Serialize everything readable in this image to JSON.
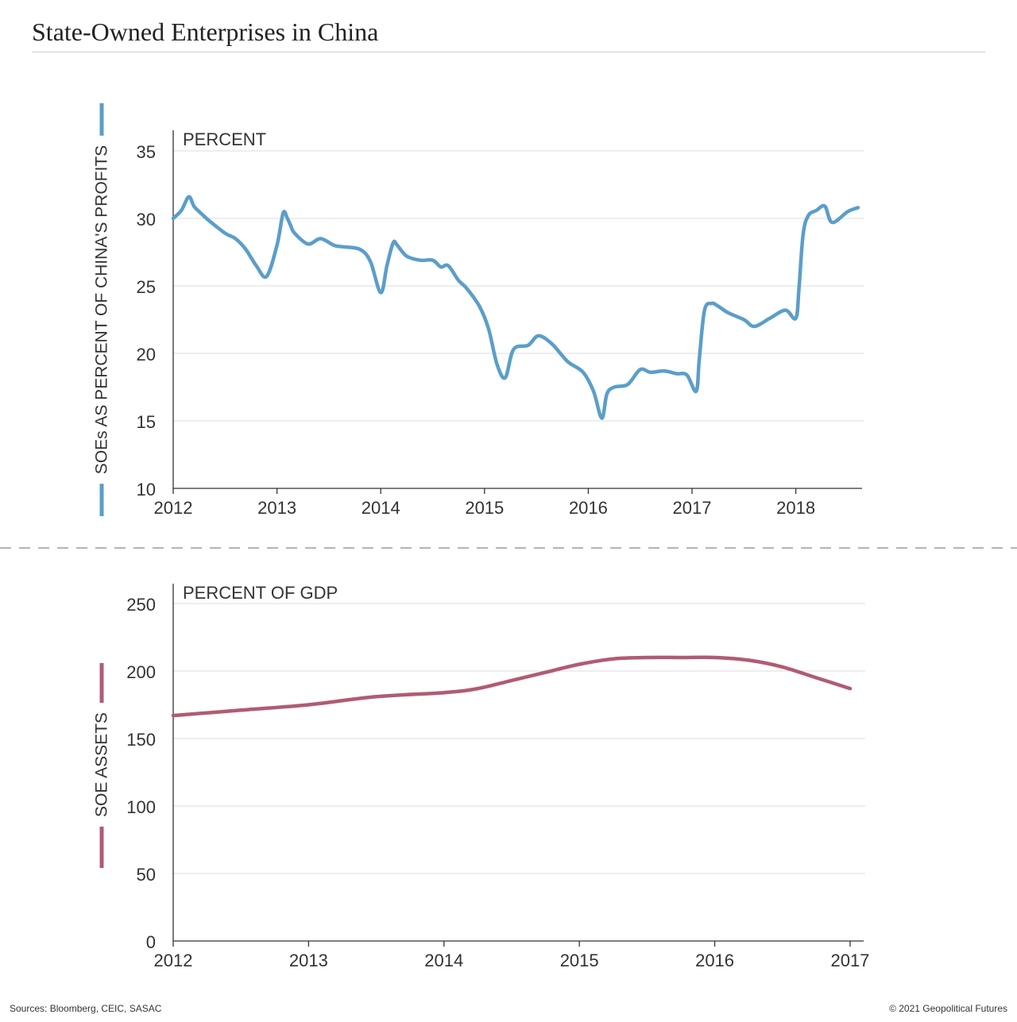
{
  "title": "State-Owned Enterprises in China",
  "footer": {
    "sources": "Sources: Bloomberg, CEIC, SASAC",
    "copyright": "© 2021 Geopolitical Futures"
  },
  "colors": {
    "profits": "#5b9ec9",
    "assets": "#b05c72"
  },
  "chart_data": [
    {
      "type": "line",
      "unit_label": "PERCENT",
      "ylabel": "SOEs AS PERCENT OF CHINA'S PROFITS",
      "ylim": [
        10,
        35
      ],
      "y_ticks": [
        10,
        15,
        20,
        25,
        30,
        35
      ],
      "xlim": [
        2012,
        2018.6
      ],
      "x_ticks": [
        "2012",
        "2013",
        "2014",
        "2015",
        "2016",
        "2017",
        "2018"
      ],
      "grid": true,
      "series": [
        {
          "color": "#5b9ec9",
          "x": [
            2012.0,
            2012.08,
            2012.15,
            2012.2,
            2012.25,
            2012.35,
            2012.5,
            2012.6,
            2012.7,
            2012.8,
            2012.9,
            2013.0,
            2013.06,
            2013.1,
            2013.13,
            2013.17,
            2013.3,
            2013.42,
            2013.55,
            2013.63,
            2013.8,
            2013.9,
            2014.0,
            2014.06,
            2014.12,
            2014.16,
            2014.25,
            2014.38,
            2014.5,
            2014.58,
            2014.65,
            2014.75,
            2014.83,
            2014.95,
            2015.04,
            2015.12,
            2015.2,
            2015.28,
            2015.42,
            2015.52,
            2015.65,
            2015.8,
            2015.95,
            2016.05,
            2016.13,
            2016.18,
            2016.25,
            2016.38,
            2016.5,
            2016.6,
            2016.73,
            2016.85,
            2016.95,
            2017.04,
            2017.07,
            2017.12,
            2017.19,
            2017.25,
            2017.35,
            2017.5,
            2017.6,
            2017.75,
            2017.9,
            2018.0,
            2018.03,
            2018.07,
            2018.12,
            2018.2,
            2018.28,
            2018.35,
            2018.5,
            2018.6
          ],
          "y": [
            30.0,
            30.6,
            31.6,
            30.9,
            30.5,
            29.8,
            28.9,
            28.5,
            27.7,
            26.5,
            25.7,
            28.0,
            30.4,
            30.0,
            29.5,
            28.9,
            28.1,
            28.5,
            28.0,
            27.9,
            27.7,
            26.8,
            24.5,
            26.5,
            28.2,
            28.0,
            27.2,
            26.9,
            26.9,
            26.4,
            26.5,
            25.4,
            24.8,
            23.5,
            21.8,
            19.2,
            18.2,
            20.3,
            20.6,
            21.3,
            20.7,
            19.4,
            18.6,
            17.2,
            15.2,
            17.0,
            17.5,
            17.7,
            18.8,
            18.6,
            18.7,
            18.5,
            18.4,
            17.2,
            19.6,
            23.2,
            23.7,
            23.5,
            23.0,
            22.5,
            22.0,
            22.6,
            23.2,
            22.6,
            24.8,
            28.8,
            30.2,
            30.6,
            30.9,
            29.7,
            30.5,
            30.8
          ]
        }
      ]
    },
    {
      "type": "line",
      "unit_label": "PERCENT OF GDP",
      "ylabel": "SOE ASSETS",
      "ylim": [
        0,
        250
      ],
      "y_ticks": [
        0,
        50,
        100,
        150,
        200,
        250
      ],
      "xlim": [
        2012,
        2017.1
      ],
      "x_ticks": [
        "2012",
        "2013",
        "2014",
        "2015",
        "2016",
        "2017"
      ],
      "grid": true,
      "series": [
        {
          "color": "#b05c72",
          "x": [
            2012.0,
            2012.5,
            2013.0,
            2013.5,
            2014.0,
            2014.25,
            2014.5,
            2014.75,
            2015.0,
            2015.25,
            2015.5,
            2015.75,
            2016.0,
            2016.25,
            2016.5,
            2016.75,
            2017.0
          ],
          "y": [
            167,
            171,
            175,
            181,
            184,
            187,
            193,
            199,
            205,
            209,
            210,
            210,
            210,
            208,
            203,
            195,
            187
          ]
        }
      ]
    }
  ]
}
